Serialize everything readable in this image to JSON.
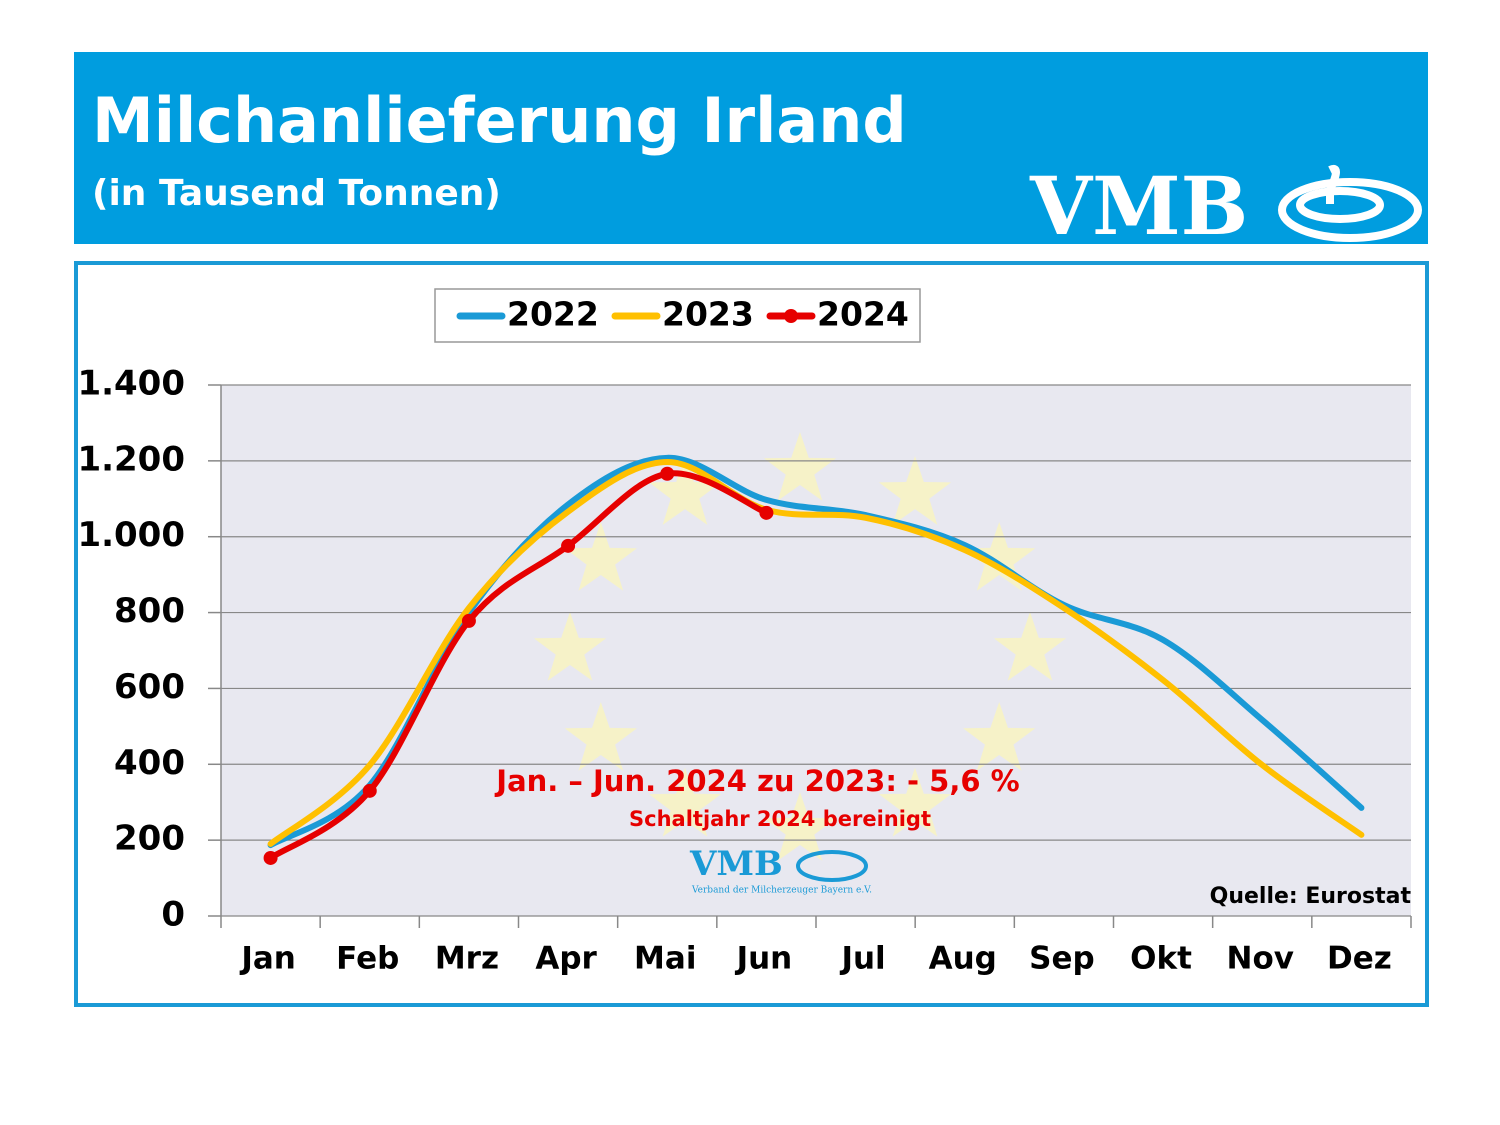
{
  "header": {
    "title": "Milchanlieferung Irland",
    "subtitle": "(in Tausend Tonnen)",
    "logo": "VMB"
  },
  "chart_data": {
    "type": "line",
    "categories": [
      "Jan",
      "Feb",
      "Mrz",
      "Apr",
      "Mai",
      "Jun",
      "Jul",
      "Aug",
      "Sep",
      "Okt",
      "Nov",
      "Dez"
    ],
    "series": [
      {
        "name": "2022",
        "color": "#1a9ad6",
        "values": [
          187,
          345,
          800,
          1085,
          1208,
          1097,
          1057,
          978,
          820,
          728,
          517,
          285
        ]
      },
      {
        "name": "2023",
        "color": "#ffc000",
        "values": [
          190,
          398,
          812,
          1066,
          1197,
          1071,
          1050,
          965,
          812,
          622,
          398,
          214
        ]
      },
      {
        "name": "2024",
        "color": "#e60000",
        "markers": true,
        "values": [
          153,
          330,
          778,
          976,
          1166,
          1063,
          null,
          null,
          null,
          null,
          null,
          null
        ]
      }
    ],
    "ylim": [
      0,
      1400
    ],
    "yticks": [
      0,
      200,
      400,
      600,
      800,
      {
        "value": 1000,
        "label": "1.000"
      },
      {
        "value": 1200,
        "label": "1.200"
      },
      {
        "value": 1400,
        "label": "1.400"
      }
    ],
    "grid": true,
    "legend": "top",
    "annotations": [
      "Jan. – Jun. 2024 zu 2023: - 5,6 %",
      "Schaltjahr 2024 bereinigt"
    ],
    "source": "Quelle: Eurostat",
    "watermark": {
      "logo": "VMB",
      "text": "Verband der Milcherzeuger Bayern e.V."
    }
  }
}
